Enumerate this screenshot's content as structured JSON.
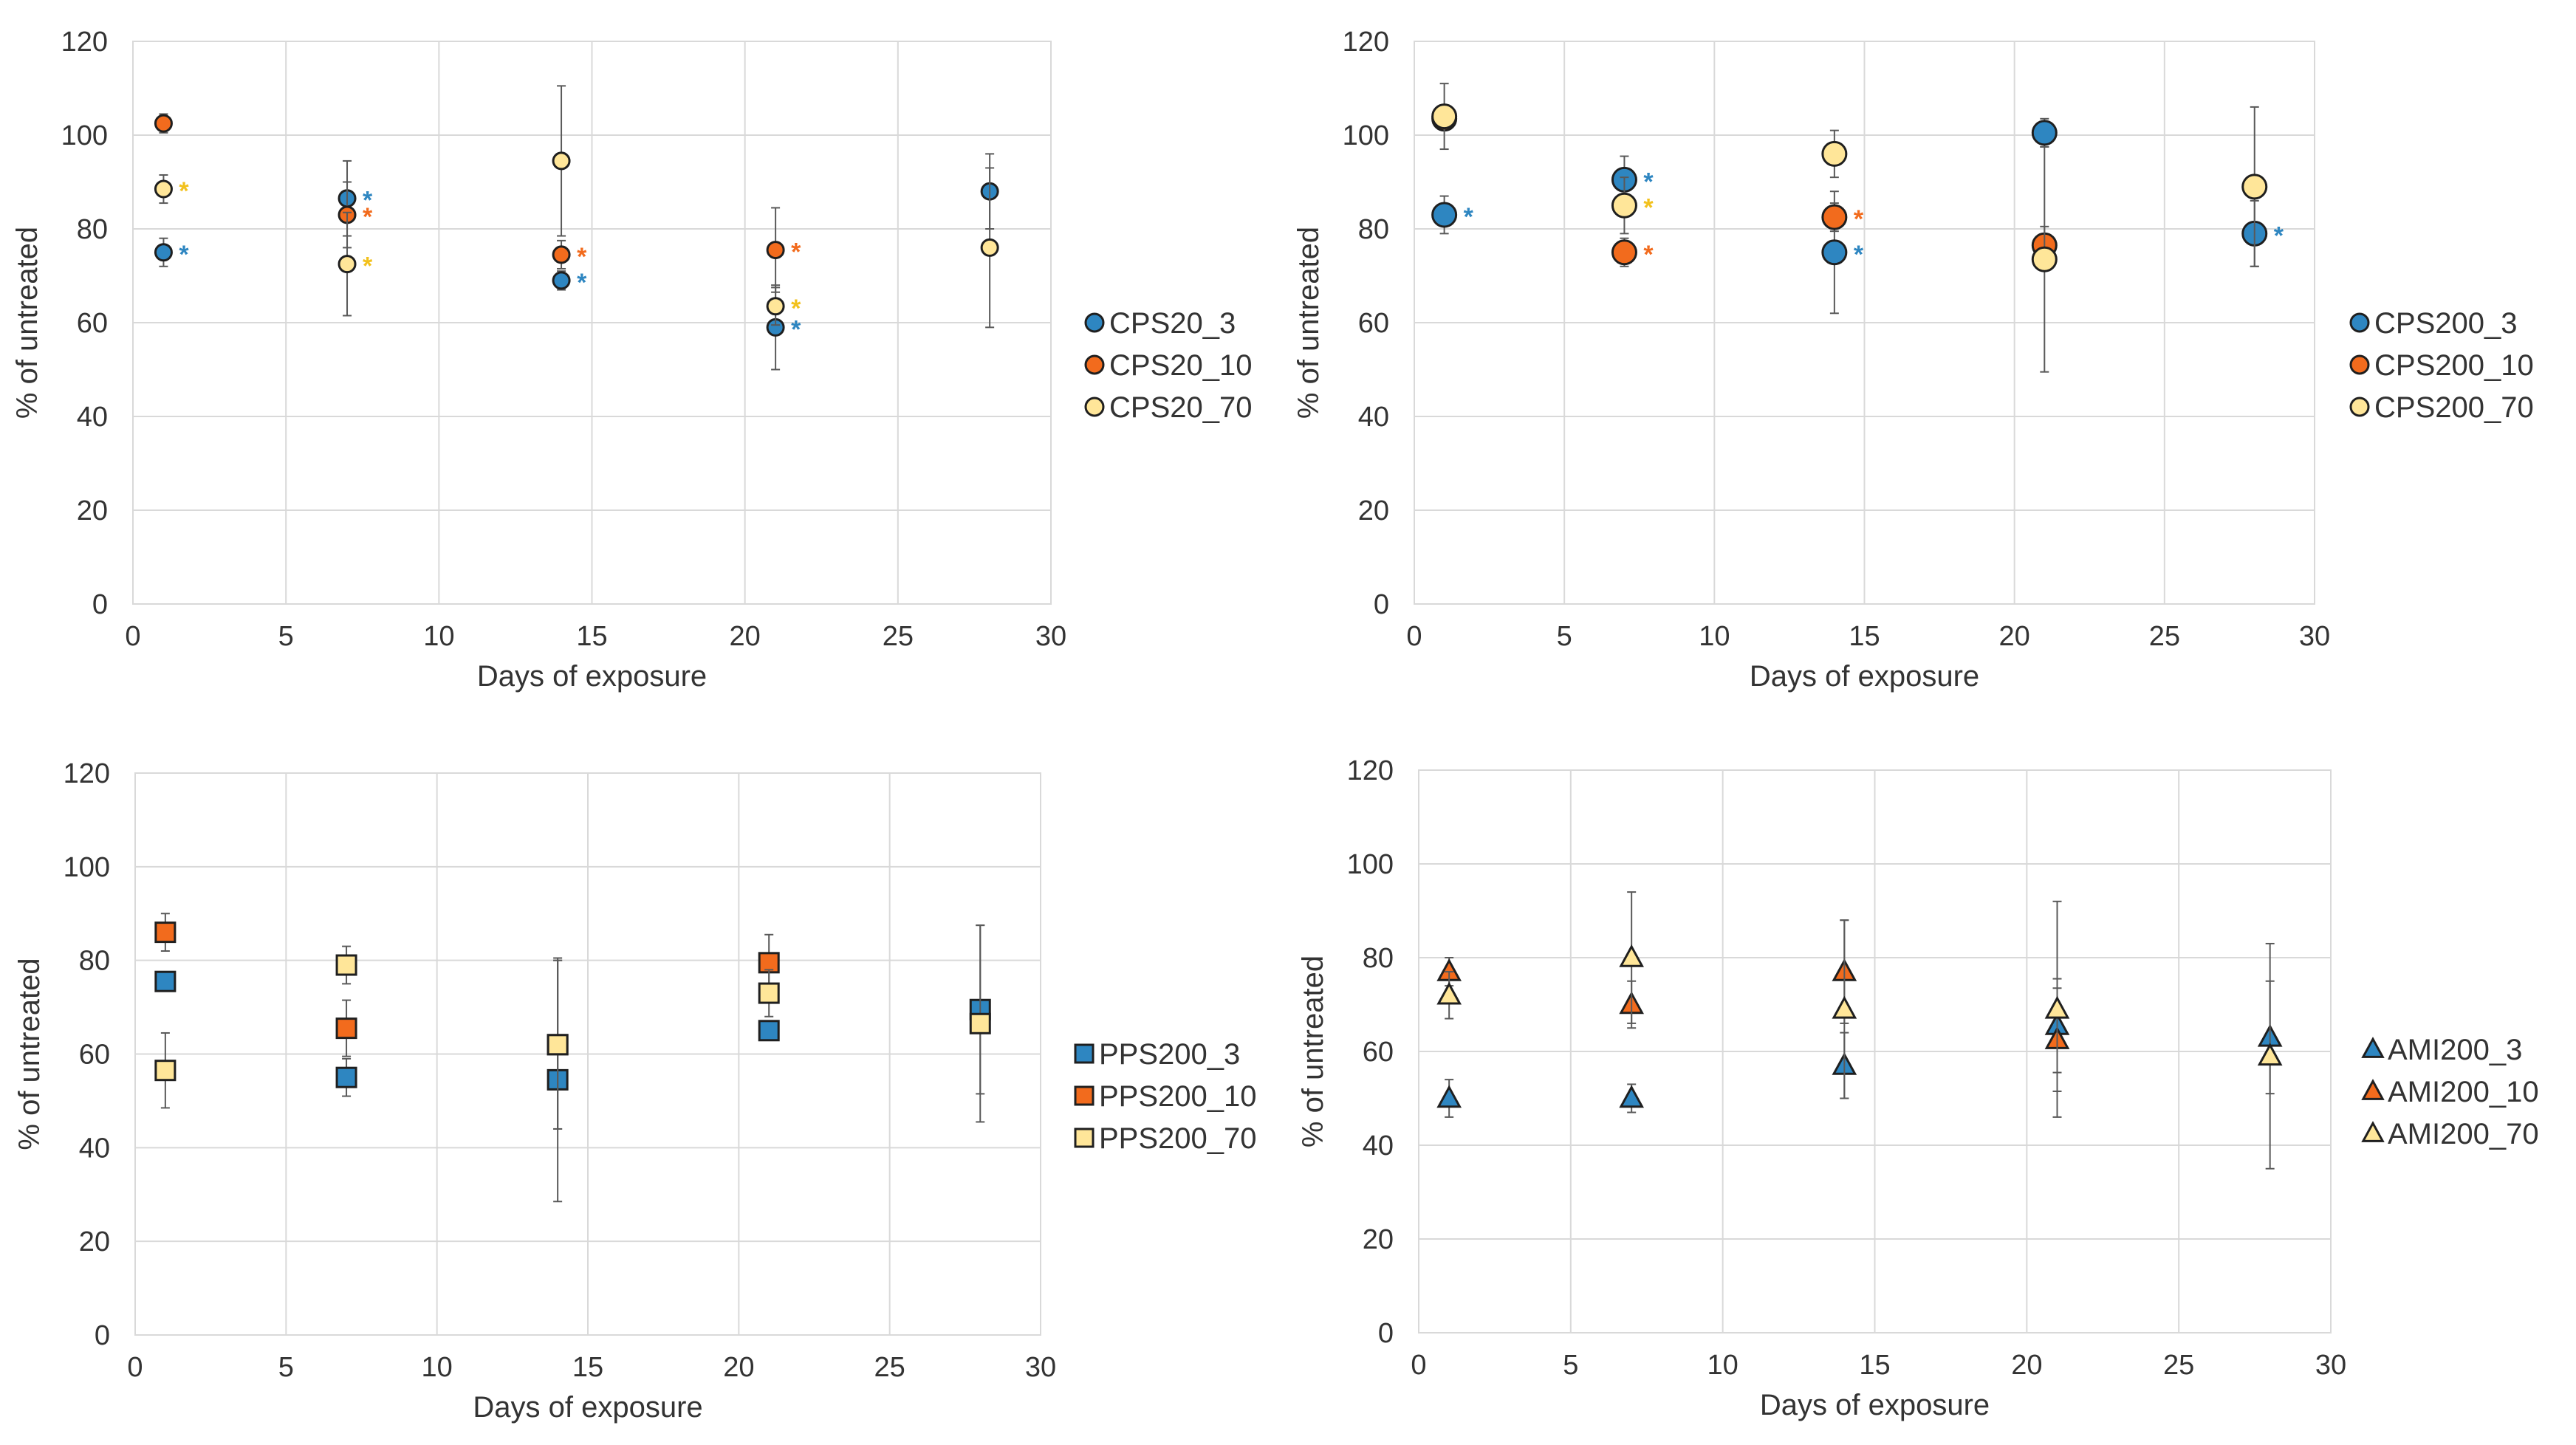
{
  "colors": {
    "s3": "#2E86C1",
    "s10": "#F26B1D",
    "s70": "#FFE699",
    "star70": "#F2C11D"
  },
  "chart_data": [
    {
      "type": "scatter",
      "marker": "circle-small",
      "xlabel": "Days of exposure",
      "ylabel": "% of untreated",
      "xlim": [
        0,
        30
      ],
      "ylim": [
        0,
        120
      ],
      "xticks": [
        "0",
        "5",
        "10",
        "15",
        "20",
        "25",
        "30"
      ],
      "yticks": [
        "0",
        "20",
        "40",
        "60",
        "80",
        "100",
        "120"
      ],
      "series": [
        {
          "name": "CPS20_3",
          "color_key": "s3",
          "points": [
            {
              "x": 1,
              "y": 75,
              "err": 3,
              "star": "*"
            },
            {
              "x": 7,
              "y": 86.5,
              "err": 8,
              "star": "*"
            },
            {
              "x": 14,
              "y": 69,
              "err": 2,
              "star": "*"
            },
            {
              "x": 21,
              "y": 59,
              "err": 9,
              "star": "*"
            },
            {
              "x": 28,
              "y": 88,
              "err": 8,
              "star": ""
            }
          ]
        },
        {
          "name": "CPS20_10",
          "color_key": "s10",
          "points": [
            {
              "x": 1,
              "y": 102.5,
              "err": 2,
              "star": ""
            },
            {
              "x": 7,
              "y": 83,
              "err": 7,
              "star": "*"
            },
            {
              "x": 14,
              "y": 74.5,
              "err": 3,
              "star": "*"
            },
            {
              "x": 21,
              "y": 75.5,
              "err": 9,
              "star": "*"
            }
          ]
        },
        {
          "name": "CPS20_70",
          "color_key": "s70",
          "points": [
            {
              "x": 1,
              "y": 88.5,
              "err": 3,
              "star": "*"
            },
            {
              "x": 7,
              "y": 72.5,
              "err": 11,
              "star": "*"
            },
            {
              "x": 14,
              "y": 94.5,
              "err": 16,
              "star": ""
            },
            {
              "x": 21,
              "y": 63.5,
              "err": 4,
              "star": "*"
            },
            {
              "x": 28,
              "y": 76,
              "err": 17,
              "star": ""
            }
          ]
        }
      ]
    },
    {
      "type": "scatter",
      "marker": "circle-large",
      "xlabel": "Days of exposure",
      "ylabel": "% of untreated",
      "xlim": [
        0,
        30
      ],
      "ylim": [
        0,
        120
      ],
      "xticks": [
        "0",
        "5",
        "10",
        "15",
        "20",
        "25",
        "30"
      ],
      "yticks": [
        "0",
        "20",
        "40",
        "60",
        "80",
        "100",
        "120"
      ],
      "series": [
        {
          "name": "CPS200_3",
          "color_key": "s3",
          "points": [
            {
              "x": 1,
              "y": 83,
              "err": 4,
              "star": "*"
            },
            {
              "x": 7,
              "y": 90.5,
              "err": 5,
              "star": "*"
            },
            {
              "x": 14,
              "y": 75,
              "err": 13,
              "star": "*"
            },
            {
              "x": 21,
              "y": 100.5,
              "err": 3,
              "star": ""
            },
            {
              "x": 28,
              "y": 79,
              "err": 7,
              "star": "*"
            }
          ]
        },
        {
          "name": "CPS200_10",
          "color_key": "s10",
          "points": [
            {
              "x": 1,
              "y": 103.5,
              "err": 2,
              "star": ""
            },
            {
              "x": 7,
              "y": 75,
              "err": 3,
              "star": "*"
            },
            {
              "x": 14,
              "y": 82.5,
              "err": 3,
              "star": "*"
            },
            {
              "x": 21,
              "y": 76.5,
              "err": 4,
              "star": ""
            }
          ]
        },
        {
          "name": "CPS200_70",
          "color_key": "s70",
          "points": [
            {
              "x": 1,
              "y": 104,
              "err": 7,
              "star": ""
            },
            {
              "x": 7,
              "y": 85,
              "err": 6,
              "star": "*"
            },
            {
              "x": 14,
              "y": 96,
              "err": 5,
              "star": ""
            },
            {
              "x": 21,
              "y": 73.5,
              "err": 24,
              "star": ""
            },
            {
              "x": 28,
              "y": 89,
              "err": 17,
              "star": ""
            }
          ]
        }
      ]
    },
    {
      "type": "scatter",
      "marker": "square",
      "xlabel": "Days of exposure",
      "ylabel": "% of untreated",
      "xlim": [
        0,
        30
      ],
      "ylim": [
        0,
        120
      ],
      "xticks": [
        "0",
        "5",
        "10",
        "15",
        "20",
        "25",
        "30"
      ],
      "yticks": [
        "0",
        "20",
        "40",
        "60",
        "80",
        "100",
        "120"
      ],
      "series": [
        {
          "name": "PPS200_3",
          "color_key": "s3",
          "points": [
            {
              "x": 1,
              "y": 75.5,
              "err": 2,
              "star": ""
            },
            {
              "x": 7,
              "y": 55,
              "err": 4,
              "star": ""
            },
            {
              "x": 14,
              "y": 54.5,
              "err": 26,
              "star": ""
            },
            {
              "x": 21,
              "y": 65,
              "err": 2,
              "star": ""
            },
            {
              "x": 28,
              "y": 69.5,
              "err": 18,
              "star": ""
            }
          ]
        },
        {
          "name": "PPS200_10",
          "color_key": "s10",
          "points": [
            {
              "x": 1,
              "y": 86,
              "err": 4,
              "star": ""
            },
            {
              "x": 7,
              "y": 65.5,
              "err": 6,
              "star": ""
            },
            {
              "x": 14,
              "y": 62,
              "err": 18,
              "star": ""
            },
            {
              "x": 21,
              "y": 79.5,
              "err": 6,
              "star": ""
            }
          ]
        },
        {
          "name": "PPS200_70",
          "color_key": "s70",
          "points": [
            {
              "x": 1,
              "y": 56.5,
              "err": 8,
              "star": ""
            },
            {
              "x": 7,
              "y": 79,
              "err": 4,
              "star": ""
            },
            {
              "x": 14,
              "y": 62,
              "err": 18,
              "star": ""
            },
            {
              "x": 21,
              "y": 73,
              "err": 5,
              "star": ""
            },
            {
              "x": 28,
              "y": 66.5,
              "err": 21,
              "star": ""
            }
          ]
        }
      ]
    },
    {
      "type": "scatter",
      "marker": "triangle",
      "xlabel": "Days of exposure",
      "ylabel": "% of untreated",
      "xlim": [
        0,
        30
      ],
      "ylim": [
        0,
        120
      ],
      "xticks": [
        "0",
        "5",
        "10",
        "15",
        "20",
        "25",
        "30"
      ],
      "yticks": [
        "0",
        "20",
        "40",
        "60",
        "80",
        "100",
        "120"
      ],
      "series": [
        {
          "name": "AMI200_3",
          "color_key": "s3",
          "points": [
            {
              "x": 1,
              "y": 50,
              "err": 4,
              "star": ""
            },
            {
              "x": 7,
              "y": 50,
              "err": 3,
              "star": ""
            },
            {
              "x": 14,
              "y": 57,
              "err": 7,
              "star": ""
            },
            {
              "x": 21,
              "y": 65.5,
              "err": 10,
              "star": ""
            },
            {
              "x": 28,
              "y": 63,
              "err": 12,
              "star": ""
            }
          ]
        },
        {
          "name": "AMI200_10",
          "color_key": "s10",
          "points": [
            {
              "x": 1,
              "y": 77,
              "err": 3,
              "star": ""
            },
            {
              "x": 7,
              "y": 70,
              "err": 5,
              "star": ""
            },
            {
              "x": 14,
              "y": 77,
              "err": 11,
              "star": ""
            },
            {
              "x": 21,
              "y": 62.5,
              "err": 11,
              "star": ""
            }
          ]
        },
        {
          "name": "AMI200_70",
          "color_key": "s70",
          "points": [
            {
              "x": 1,
              "y": 72,
              "err": 5,
              "star": ""
            },
            {
              "x": 7,
              "y": 80,
              "err": 14,
              "star": ""
            },
            {
              "x": 14,
              "y": 69,
              "err": 19,
              "star": ""
            },
            {
              "x": 21,
              "y": 69,
              "err": 23,
              "star": ""
            },
            {
              "x": 28,
              "y": 59,
              "err": 24,
              "star": ""
            }
          ]
        }
      ]
    }
  ]
}
